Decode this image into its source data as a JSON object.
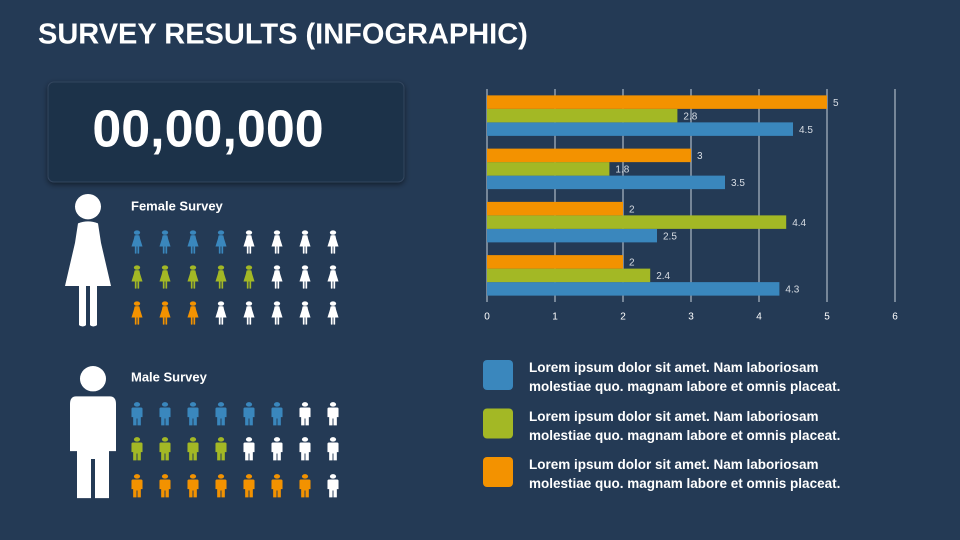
{
  "title": "SURVEY RESULTS (INFOGRAPHIC)",
  "counter": "00,00,000",
  "female_survey": {
    "label": "Female Survey",
    "total": 8,
    "rows": [
      {
        "color": "#3a87bd",
        "count": 4
      },
      {
        "color": "#a3b825",
        "count": 5
      },
      {
        "color": "#f39200",
        "count": 3
      }
    ]
  },
  "male_survey": {
    "label": "Male Survey",
    "total": 8,
    "rows": [
      {
        "color": "#3a87bd",
        "count": 6
      },
      {
        "color": "#a3b825",
        "count": 4
      },
      {
        "color": "#f39200",
        "count": 7
      }
    ]
  },
  "chart_data": {
    "type": "bar",
    "orientation": "horizontal",
    "categories": [
      null,
      null,
      null,
      null
    ],
    "series": [
      {
        "name": "Lorem ipsum dolor sit amet. Nam laboriosam molestiae quo. magnam labore et omnis placeat.",
        "color": "#3a87bd",
        "values": [
          4.5,
          3.5,
          2.5,
          4.3
        ]
      },
      {
        "name": "Lorem ipsum dolor sit amet. Nam laboriosam molestiae quo. magnam labore et omnis placeat.",
        "color": "#a3b825",
        "values": [
          2.8,
          1.8,
          4.4,
          2.4
        ]
      },
      {
        "name": "Lorem ipsum dolor sit amet. Nam laboriosam molestiae quo. magnam labore et omnis placeat.",
        "color": "#f39200",
        "values": [
          5,
          3,
          2,
          2
        ]
      }
    ],
    "xlim": [
      0,
      6
    ],
    "xticks": [
      0,
      1,
      2,
      3,
      4,
      5,
      6
    ],
    "grid": true
  }
}
